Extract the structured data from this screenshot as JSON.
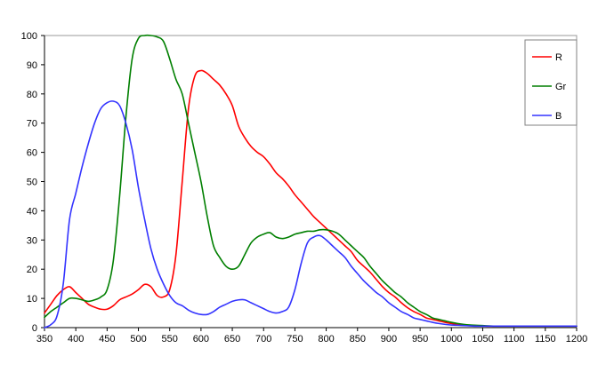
{
  "chart_data": {
    "type": "line",
    "title": "",
    "xlabel": "",
    "ylabel": "",
    "xlim": [
      350,
      1200
    ],
    "ylim": [
      0,
      100
    ],
    "grid": false,
    "legend_position": "top-right",
    "x_ticks": [
      "350",
      "400",
      "450",
      "500",
      "550",
      "600",
      "650",
      "700",
      "750",
      "800",
      "850",
      "900",
      "950",
      "1000",
      "1050",
      "1100",
      "1150",
      "1200"
    ],
    "y_ticks": [
      "0",
      "10",
      "20",
      "30",
      "40",
      "50",
      "60",
      "70",
      "80",
      "90",
      "100"
    ],
    "series": [
      {
        "name": "R",
        "color": "#ff0000",
        "x": [
          350,
          360,
          370,
          380,
          390,
          400,
          410,
          420,
          430,
          440,
          450,
          460,
          470,
          480,
          490,
          500,
          510,
          520,
          530,
          540,
          550,
          560,
          570,
          580,
          590,
          600,
          610,
          620,
          630,
          640,
          650,
          660,
          670,
          680,
          690,
          700,
          710,
          720,
          730,
          740,
          750,
          760,
          770,
          780,
          790,
          800,
          810,
          820,
          830,
          840,
          850,
          860,
          870,
          880,
          890,
          900,
          910,
          920,
          930,
          940,
          950,
          960,
          970,
          980,
          990,
          1000,
          1010,
          1020,
          1030,
          1040,
          1050,
          1060,
          1070,
          1080,
          1090,
          1100,
          1120,
          1140,
          1160,
          1180,
          1200
        ],
        "values": [
          5,
          8,
          11,
          13,
          14,
          12,
          10,
          8,
          7,
          6.3,
          6.3,
          7.5,
          9.5,
          10.5,
          11.5,
          13,
          14.8,
          14,
          11,
          10.5,
          13,
          25,
          50,
          75,
          86,
          88,
          87,
          85,
          83,
          80,
          76,
          69,
          65,
          62,
          60,
          58.5,
          56,
          53,
          51,
          48.5,
          45.5,
          43,
          40.5,
          38,
          36,
          34,
          32,
          30,
          28,
          26,
          23,
          21,
          19,
          16.5,
          14,
          12,
          10.5,
          8.5,
          6.8,
          5.5,
          4.5,
          3.3,
          2.8,
          2.3,
          1.8,
          1.4,
          1.1,
          0.9,
          0.8,
          0.7,
          0.6,
          0.5,
          0.5,
          0.5,
          0.5,
          0.5,
          0.5,
          0.5,
          0.5,
          0.5,
          0.5
        ]
      },
      {
        "name": "Gr",
        "color": "#007f00",
        "x": [
          350,
          360,
          370,
          380,
          390,
          400,
          410,
          420,
          430,
          440,
          450,
          460,
          470,
          480,
          490,
          500,
          510,
          520,
          530,
          540,
          550,
          560,
          570,
          580,
          590,
          600,
          610,
          620,
          630,
          640,
          650,
          660,
          670,
          680,
          690,
          700,
          710,
          720,
          730,
          740,
          750,
          760,
          770,
          780,
          790,
          800,
          810,
          820,
          830,
          840,
          850,
          860,
          870,
          880,
          890,
          900,
          910,
          920,
          930,
          940,
          950,
          960,
          970,
          980,
          990,
          1000,
          1010,
          1020,
          1030,
          1040,
          1050,
          1060,
          1070,
          1080,
          1090,
          1100,
          1120,
          1140,
          1160,
          1180,
          1200
        ],
        "values": [
          3.5,
          5.5,
          7,
          8.5,
          10,
          10,
          9.5,
          9,
          9.5,
          10.5,
          13,
          23,
          45,
          72,
          92,
          99,
          100,
          100,
          99.5,
          98,
          92,
          85,
          80,
          70,
          60,
          50,
          38,
          28,
          24,
          21,
          20,
          21,
          25,
          29,
          31,
          32,
          32.5,
          31,
          30.5,
          31,
          32,
          32.5,
          33,
          33,
          33.5,
          33.5,
          33,
          32,
          30,
          28,
          26,
          24,
          21,
          18.5,
          16,
          14,
          12,
          10.5,
          8.5,
          7,
          5.5,
          4.5,
          3.3,
          2.8,
          2.3,
          1.8,
          1.4,
          1.1,
          0.9,
          0.8,
          0.7,
          0.6,
          0.5,
          0.5,
          0.5,
          0.5,
          0.5,
          0.5,
          0.5,
          0.5,
          0.5
        ]
      },
      {
        "name": "B",
        "color": "#3333ff",
        "x": [
          350,
          360,
          370,
          380,
          390,
          400,
          410,
          420,
          430,
          440,
          450,
          460,
          470,
          480,
          490,
          500,
          510,
          520,
          530,
          540,
          550,
          560,
          570,
          580,
          590,
          600,
          610,
          620,
          630,
          640,
          650,
          660,
          670,
          680,
          690,
          700,
          710,
          720,
          730,
          740,
          750,
          760,
          770,
          780,
          790,
          800,
          810,
          820,
          830,
          840,
          850,
          860,
          870,
          880,
          890,
          900,
          910,
          920,
          930,
          940,
          950,
          960,
          970,
          980,
          990,
          1000,
          1010,
          1020,
          1030,
          1040,
          1050,
          1060,
          1070,
          1080,
          1090,
          1100,
          1120,
          1140,
          1160,
          1180,
          1200
        ],
        "values": [
          0,
          1,
          4,
          15,
          37,
          46,
          55,
          63,
          70,
          75,
          77,
          77.5,
          76,
          70,
          61,
          48,
          37,
          27,
          20,
          15,
          11,
          8.5,
          7.5,
          6,
          5,
          4.5,
          4.5,
          5.5,
          7,
          8,
          9,
          9.5,
          9.5,
          8.5,
          7.5,
          6.5,
          5.5,
          5,
          5.5,
          7,
          13,
          22,
          29,
          31,
          31.5,
          30,
          28,
          26,
          24,
          21,
          18.5,
          16,
          14,
          12,
          10.5,
          8.5,
          7,
          5.5,
          4.5,
          3.3,
          2.8,
          2.3,
          1.8,
          1.4,
          1.1,
          0.9,
          0.8,
          0.7,
          0.6,
          0.5,
          0.5,
          0.5,
          0.5,
          0.5,
          0.5,
          0.5,
          0.5,
          0.5,
          0.5,
          0.5,
          0.5
        ]
      }
    ]
  }
}
